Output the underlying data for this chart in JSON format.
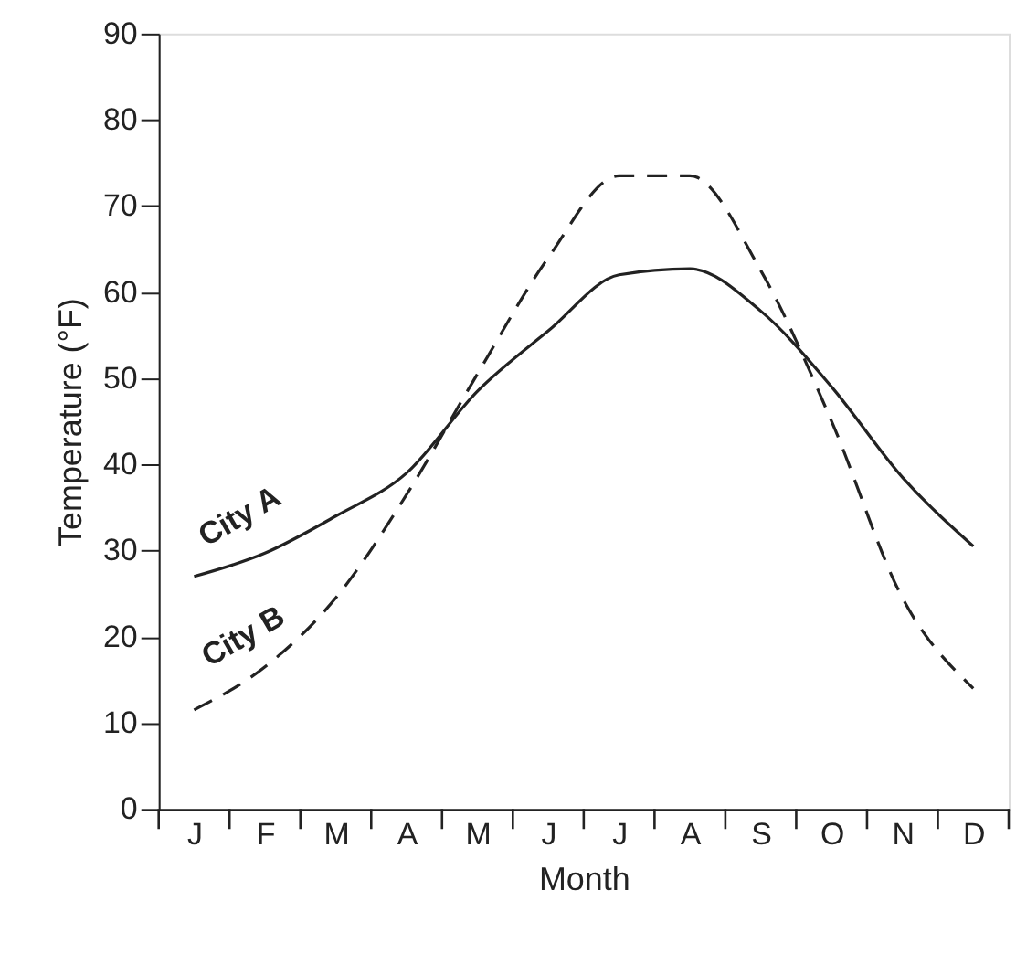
{
  "chart_data": {
    "type": "line",
    "xlabel": "Month",
    "ylabel": "Temperature (°F)",
    "categories": [
      "J",
      "F",
      "M",
      "A",
      "M",
      "J",
      "J",
      "A",
      "S",
      "O",
      "N",
      "D"
    ],
    "ylim": [
      0,
      90
    ],
    "yticks": [
      0,
      10,
      20,
      30,
      40,
      50,
      60,
      70,
      80,
      90
    ],
    "grid": false,
    "marker": "none",
    "series": [
      {
        "name": "City A",
        "color": "#222222",
        "line_style": "solid",
        "values": [
          27,
          29.7,
          34,
          39,
          48.5,
          55.5,
          62,
          62.7,
          57.8,
          49,
          38.5,
          30.5
        ]
      },
      {
        "name": "City B",
        "color": "#222222",
        "line_style": "dashed",
        "values": [
          11.5,
          16.5,
          24.5,
          36.5,
          50.5,
          64,
          73.5,
          73.5,
          62.5,
          45,
          24.5,
          14
        ]
      }
    ]
  }
}
